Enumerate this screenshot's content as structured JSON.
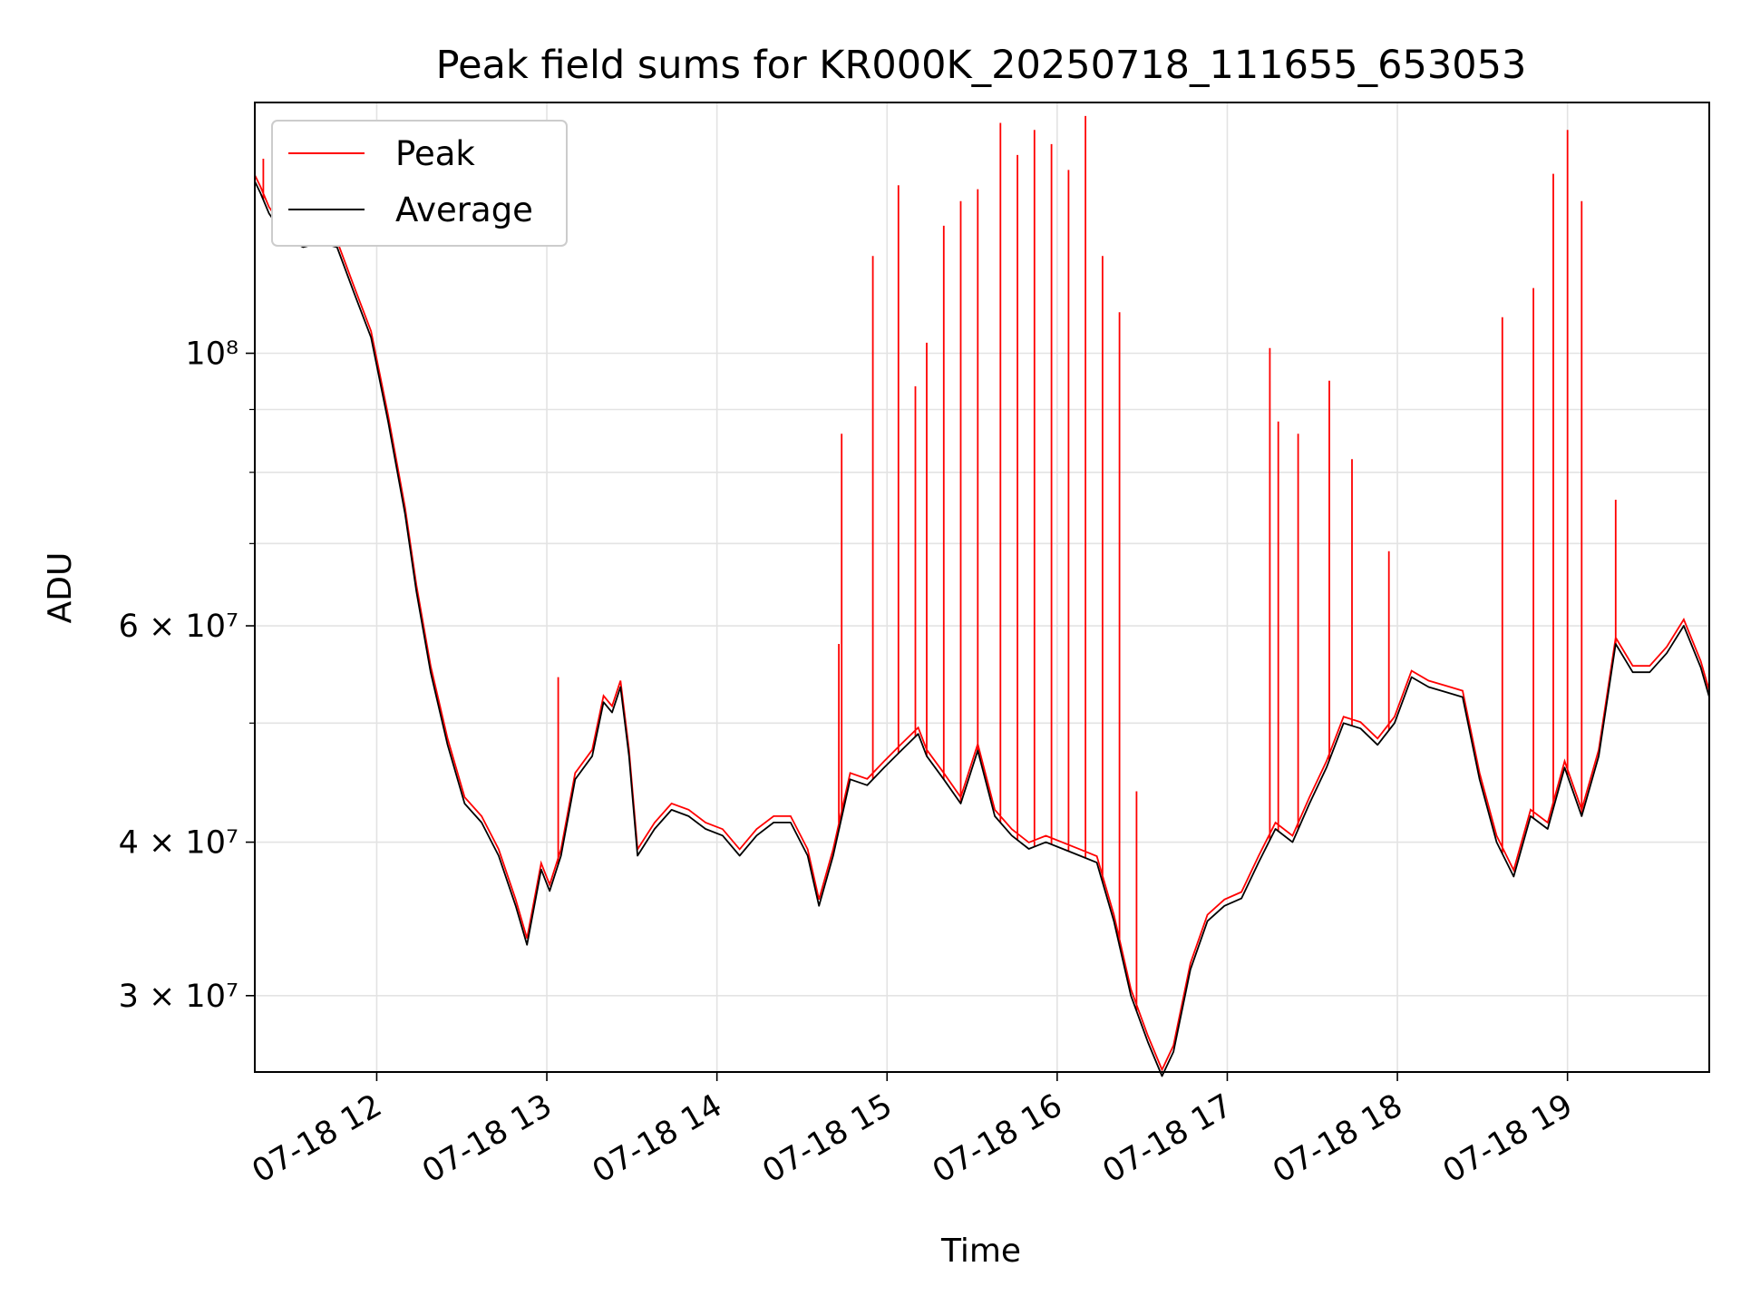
{
  "chart_data": {
    "type": "line",
    "title": "Peak field sums for KR000K_20250718_111655_653053",
    "xlabel": "Time",
    "ylabel": "ADU",
    "yscale": "log",
    "xlim": [
      "2025-07-18 11:17",
      "2025-07-18 19:50"
    ],
    "ylim": [
      26000000,
      160000000
    ],
    "grid": true,
    "legend_position": "upper-left",
    "x_ticks": [
      {
        "t": "2025-07-18 12:00",
        "label": "07-18 12"
      },
      {
        "t": "2025-07-18 13:00",
        "label": "07-18 13"
      },
      {
        "t": "2025-07-18 14:00",
        "label": "07-18 14"
      },
      {
        "t": "2025-07-18 15:00",
        "label": "07-18 15"
      },
      {
        "t": "2025-07-18 16:00",
        "label": "07-18 16"
      },
      {
        "t": "2025-07-18 17:00",
        "label": "07-18 17"
      },
      {
        "t": "2025-07-18 18:00",
        "label": "07-18 18"
      },
      {
        "t": "2025-07-18 19:00",
        "label": "07-18 19"
      }
    ],
    "y_ticks": [
      {
        "value": 30000000,
        "label": "3 × 10⁷"
      },
      {
        "value": 40000000,
        "label": "4 × 10⁷"
      },
      {
        "value": 60000000,
        "label": "6 × 10⁷"
      },
      {
        "value": 100000000,
        "label": "10⁸"
      }
    ],
    "y_minor_gridlines": [
      50000000,
      70000000,
      80000000,
      90000000
    ],
    "series": [
      {
        "name": "Average",
        "color": "#000000",
        "points": [
          [
            "2025-07-18 11:17",
            138000000
          ],
          [
            "2025-07-18 11:19",
            135000000
          ],
          [
            "2025-07-18 11:22",
            130000000
          ],
          [
            "2025-07-18 11:25",
            127000000
          ],
          [
            "2025-07-18 11:28",
            124000000
          ],
          [
            "2025-07-18 11:34",
            122000000
          ],
          [
            "2025-07-18 11:40",
            123000000
          ],
          [
            "2025-07-18 11:46",
            122000000
          ],
          [
            "2025-07-18 11:52",
            112000000
          ],
          [
            "2025-07-18 11:58",
            103000000
          ],
          [
            "2025-07-18 12:04",
            88000000
          ],
          [
            "2025-07-18 12:10",
            74000000
          ],
          [
            "2025-07-18 12:14",
            64000000
          ],
          [
            "2025-07-18 12:19",
            55000000
          ],
          [
            "2025-07-18 12:25",
            48000000
          ],
          [
            "2025-07-18 12:31",
            43000000
          ],
          [
            "2025-07-18 12:37",
            41500000
          ],
          [
            "2025-07-18 12:43",
            39000000
          ],
          [
            "2025-07-18 12:49",
            35500000
          ],
          [
            "2025-07-18 12:53",
            33000000
          ],
          [
            "2025-07-18 12:58",
            38000000
          ],
          [
            "2025-07-18 13:01",
            36500000
          ],
          [
            "2025-07-18 13:05",
            39000000
          ],
          [
            "2025-07-18 13:10",
            45000000
          ],
          [
            "2025-07-18 13:16",
            47000000
          ],
          [
            "2025-07-18 13:20",
            52000000
          ],
          [
            "2025-07-18 13:23",
            51000000
          ],
          [
            "2025-07-18 13:26",
            53500000
          ],
          [
            "2025-07-18 13:29",
            47000000
          ],
          [
            "2025-07-18 13:32",
            39000000
          ],
          [
            "2025-07-18 13:38",
            41000000
          ],
          [
            "2025-07-18 13:44",
            42500000
          ],
          [
            "2025-07-18 13:50",
            42000000
          ],
          [
            "2025-07-18 13:56",
            41000000
          ],
          [
            "2025-07-18 14:02",
            40500000
          ],
          [
            "2025-07-18 14:08",
            39000000
          ],
          [
            "2025-07-18 14:14",
            40500000
          ],
          [
            "2025-07-18 14:20",
            41500000
          ],
          [
            "2025-07-18 14:26",
            41500000
          ],
          [
            "2025-07-18 14:32",
            39000000
          ],
          [
            "2025-07-18 14:36",
            35500000
          ],
          [
            "2025-07-18 14:41",
            39000000
          ],
          [
            "2025-07-18 14:47",
            45000000
          ],
          [
            "2025-07-18 14:53",
            44500000
          ],
          [
            "2025-07-18 14:59",
            46000000
          ],
          [
            "2025-07-18 15:05",
            47500000
          ],
          [
            "2025-07-18 15:11",
            49000000
          ],
          [
            "2025-07-18 15:14",
            47000000
          ],
          [
            "2025-07-18 15:20",
            45000000
          ],
          [
            "2025-07-18 15:26",
            43000000
          ],
          [
            "2025-07-18 15:32",
            47500000
          ],
          [
            "2025-07-18 15:38",
            42000000
          ],
          [
            "2025-07-18 15:44",
            40500000
          ],
          [
            "2025-07-18 15:50",
            39500000
          ],
          [
            "2025-07-18 15:56",
            40000000
          ],
          [
            "2025-07-18 16:02",
            39500000
          ],
          [
            "2025-07-18 16:08",
            39000000
          ],
          [
            "2025-07-18 16:14",
            38500000
          ],
          [
            "2025-07-18 16:20",
            34500000
          ],
          [
            "2025-07-18 16:26",
            30000000
          ],
          [
            "2025-07-18 16:32",
            27500000
          ],
          [
            "2025-07-18 16:37",
            25800000
          ],
          [
            "2025-07-18 16:41",
            27000000
          ],
          [
            "2025-07-18 16:47",
            31500000
          ],
          [
            "2025-07-18 16:53",
            34500000
          ],
          [
            "2025-07-18 16:59",
            35500000
          ],
          [
            "2025-07-18 17:05",
            36000000
          ],
          [
            "2025-07-18 17:11",
            38500000
          ],
          [
            "2025-07-18 17:17",
            41000000
          ],
          [
            "2025-07-18 17:23",
            40000000
          ],
          [
            "2025-07-18 17:29",
            43000000
          ],
          [
            "2025-07-18 17:35",
            46000000
          ],
          [
            "2025-07-18 17:41",
            50000000
          ],
          [
            "2025-07-18 17:47",
            49500000
          ],
          [
            "2025-07-18 17:53",
            48000000
          ],
          [
            "2025-07-18 17:59",
            50000000
          ],
          [
            "2025-07-18 18:05",
            54500000
          ],
          [
            "2025-07-18 18:11",
            53500000
          ],
          [
            "2025-07-18 18:17",
            53000000
          ],
          [
            "2025-07-18 18:23",
            52500000
          ],
          [
            "2025-07-18 18:29",
            45000000
          ],
          [
            "2025-07-18 18:35",
            40000000
          ],
          [
            "2025-07-18 18:41",
            37500000
          ],
          [
            "2025-07-18 18:47",
            42000000
          ],
          [
            "2025-07-18 18:53",
            41000000
          ],
          [
            "2025-07-18 18:59",
            46000000
          ],
          [
            "2025-07-18 19:05",
            42000000
          ],
          [
            "2025-07-18 19:11",
            47000000
          ],
          [
            "2025-07-18 19:17",
            58000000
          ],
          [
            "2025-07-18 19:23",
            55000000
          ],
          [
            "2025-07-18 19:29",
            55000000
          ],
          [
            "2025-07-18 19:35",
            57000000
          ],
          [
            "2025-07-18 19:41",
            60000000
          ],
          [
            "2025-07-18 19:47",
            55500000
          ],
          [
            "2025-07-18 19:50",
            52500000
          ]
        ]
      },
      {
        "name": "Peak",
        "color": "#ff0000",
        "baseline": "Average",
        "spikes": [
          [
            "2025-07-18 11:20",
            144000000
          ],
          [
            "2025-07-18 13:04",
            54500000
          ],
          [
            "2025-07-18 13:13",
            46000000
          ],
          [
            "2025-07-18 14:43",
            58000000
          ],
          [
            "2025-07-18 14:44",
            86000000
          ],
          [
            "2025-07-18 14:55",
            120000000
          ],
          [
            "2025-07-18 15:04",
            137000000
          ],
          [
            "2025-07-18 15:10",
            94000000
          ],
          [
            "2025-07-18 15:14",
            102000000
          ],
          [
            "2025-07-18 15:20",
            127000000
          ],
          [
            "2025-07-18 15:26",
            133000000
          ],
          [
            "2025-07-18 15:32",
            136000000
          ],
          [
            "2025-07-18 15:40",
            154000000
          ],
          [
            "2025-07-18 15:46",
            145000000
          ],
          [
            "2025-07-18 15:52",
            152000000
          ],
          [
            "2025-07-18 15:58",
            148000000
          ],
          [
            "2025-07-18 16:04",
            141000000
          ],
          [
            "2025-07-18 16:10",
            156000000
          ],
          [
            "2025-07-18 16:16",
            120000000
          ],
          [
            "2025-07-18 16:22",
            108000000
          ],
          [
            "2025-07-18 16:28",
            44000000
          ],
          [
            "2025-07-18 17:15",
            101000000
          ],
          [
            "2025-07-18 17:18",
            88000000
          ],
          [
            "2025-07-18 17:25",
            86000000
          ],
          [
            "2025-07-18 17:36",
            95000000
          ],
          [
            "2025-07-18 17:44",
            82000000
          ],
          [
            "2025-07-18 17:57",
            69000000
          ],
          [
            "2025-07-18 18:37",
            107000000
          ],
          [
            "2025-07-18 18:48",
            113000000
          ],
          [
            "2025-07-18 18:55",
            140000000
          ],
          [
            "2025-07-18 19:00",
            152000000
          ],
          [
            "2025-07-18 19:05",
            133000000
          ],
          [
            "2025-07-18 19:17",
            76000000
          ]
        ]
      }
    ]
  }
}
